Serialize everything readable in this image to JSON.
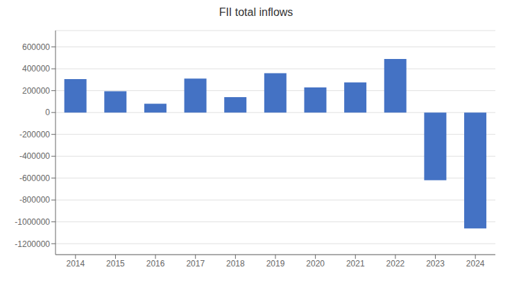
{
  "chart_data": {
    "type": "bar",
    "title": "FII total inflows",
    "categories": [
      "2014",
      "2015",
      "2016",
      "2017",
      "2018",
      "2019",
      "2020",
      "2021",
      "2022",
      "2023",
      "2024"
    ],
    "values": [
      305000,
      195000,
      80000,
      310000,
      140000,
      360000,
      230000,
      275000,
      490000,
      -620000,
      -1060000
    ],
    "color": "#4472C4",
    "ylim": [
      -1300000,
      750000
    ],
    "yticks": [
      -1200000,
      -1000000,
      -800000,
      -600000,
      -400000,
      -200000,
      0,
      200000,
      400000,
      600000
    ],
    "grid": true
  }
}
